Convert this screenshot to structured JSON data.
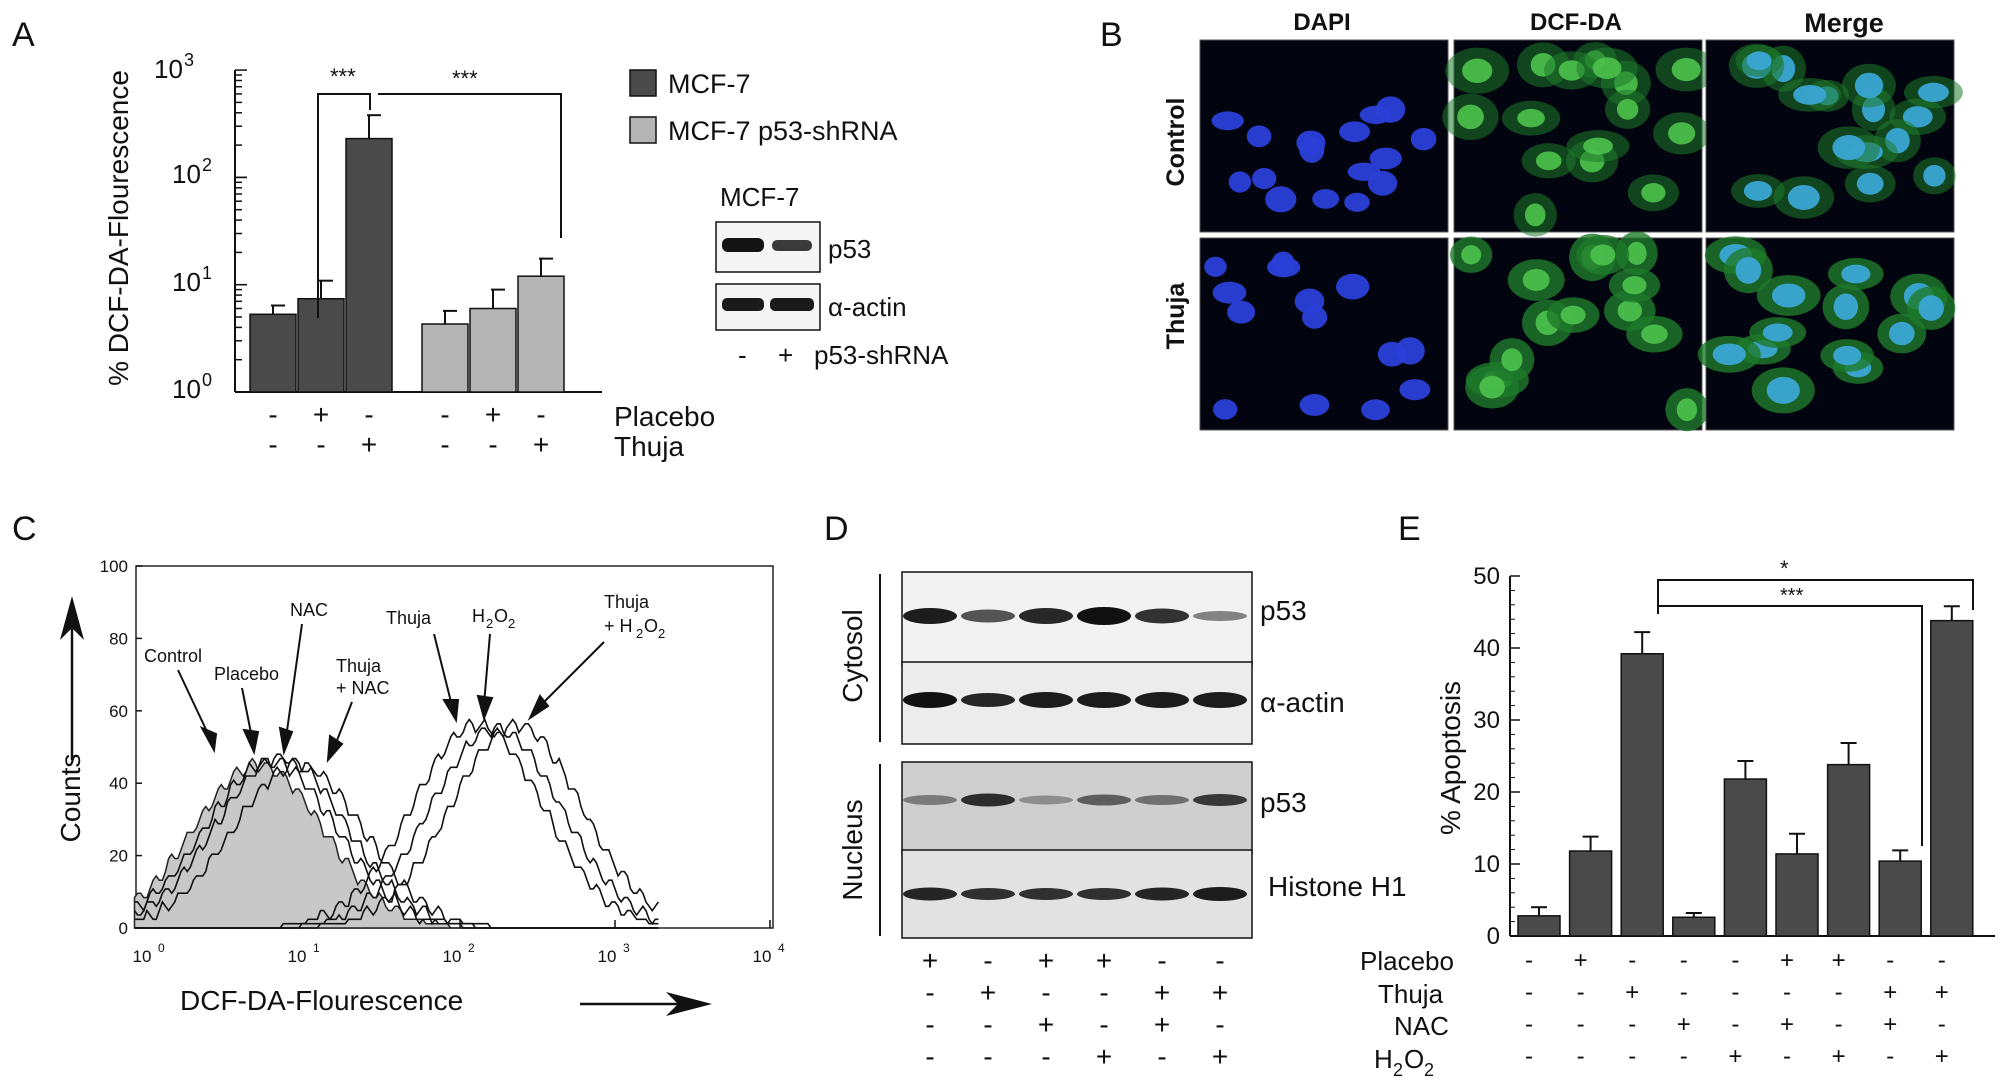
{
  "panels": {
    "A": {
      "letter": "A",
      "chart_data": {
        "type": "bar",
        "ylabel": "% DCF-DA-Flourescence",
        "yscale": "log",
        "ylim": [
          1,
          1000
        ],
        "yticks": [
          "10",
          "10",
          "10",
          "10"
        ],
        "ytick_exponents": [
          "0",
          "1",
          "2",
          "3"
        ],
        "series": [
          {
            "name": "MCF-7",
            "color": "#4a4a4a",
            "values": [
              5.3,
              7.4,
              230
            ],
            "errors": [
              1.1,
              3.5,
              150
            ]
          },
          {
            "name": "MCF-7 p53-shRNA",
            "color": "#b4b4b4",
            "values": [
              4.3,
              6.0,
              12.0
            ],
            "errors": [
              1.4,
              3.0,
              5.5
            ]
          }
        ],
        "conditions": {
          "rows": [
            {
              "label": "Placebo",
              "signs": [
                "-",
                "+",
                "-",
                "-",
                "+",
                "-"
              ]
            },
            {
              "label": "Thuja",
              "signs": [
                "-",
                "-",
                "+",
                "-",
                "-",
                "+"
              ]
            }
          ]
        },
        "annotations": [
          "***",
          "***"
        ]
      },
      "blot": {
        "title": "MCF-7",
        "bands": [
          "p53",
          "α-actin"
        ],
        "lane_signs": [
          "-",
          "+"
        ],
        "lane_label": "p53-shRNA"
      }
    },
    "B": {
      "letter": "B",
      "columns": [
        {
          "label": "DAPI",
          "color": "#2f58c8"
        },
        {
          "label": "DCF-DA",
          "color": "#3fb43f"
        },
        {
          "label": "Merge",
          "color": "#111111"
        }
      ],
      "rows": [
        "Control",
        "Thuja"
      ]
    },
    "C": {
      "letter": "C",
      "chart_data": {
        "type": "area",
        "xlabel": "DCF-DA-Flourescence",
        "ylabel": "Counts",
        "xscale": "log",
        "xlim": [
          1,
          10000
        ],
        "ylim": [
          0,
          100
        ],
        "xticks": [
          "10",
          "10",
          "10",
          "10",
          "10"
        ],
        "xtick_exponents": [
          "0",
          "1",
          "2",
          "3",
          "4"
        ],
        "yticks": [
          "0",
          "20",
          "40",
          "60",
          "80",
          "100"
        ],
        "peaks": [
          {
            "name": "Control",
            "center": 5,
            "height": 45,
            "filled": true
          },
          {
            "name": "Placebo",
            "center": 6,
            "height": 46
          },
          {
            "name": "NAC",
            "center": 7,
            "height": 47
          },
          {
            "name": "Thuja + NAC",
            "center": 9,
            "height": 45
          },
          {
            "name": "Thuja",
            "center": 130,
            "height": 56
          },
          {
            "name": "H2O2",
            "center": 170,
            "height": 55
          },
          {
            "name": "Thuja + H2O2",
            "center": 230,
            "height": 56
          }
        ],
        "labels": {
          "control": "Control",
          "placebo": "Placebo",
          "nac": "NAC",
          "thuja_nac_1": "Thuja",
          "thuja_nac_2": "+ NAC",
          "thuja": "Thuja",
          "h2o2_main": "H",
          "h2o2_sub": "2",
          "h2o2_o": "O",
          "h2o2_sub2": "2",
          "th2_1": "Thuja",
          "th2_2": "+ H",
          "th2_sub": "2",
          "th2_o": "O",
          "th2_sub2": "2"
        }
      }
    },
    "D": {
      "letter": "D",
      "fractions": [
        "Cytosol",
        "Nucleus"
      ],
      "bands": [
        "p53",
        "α-actin",
        "p53",
        "Histone H1"
      ],
      "conditions": [
        [
          "+",
          "-",
          "+",
          "+",
          "-",
          "-"
        ],
        [
          "-",
          "+",
          "-",
          "-",
          "+",
          "+"
        ],
        [
          "-",
          "-",
          "+",
          "-",
          "+",
          "-"
        ],
        [
          "-",
          "-",
          "-",
          "+",
          "-",
          "+"
        ]
      ]
    },
    "E": {
      "letter": "E",
      "chart_data": {
        "type": "bar",
        "ylabel": "% Apoptosis",
        "ylim": [
          0,
          50
        ],
        "yticks": [
          "0",
          "10",
          "20",
          "30",
          "40",
          "50"
        ],
        "values": [
          2.8,
          11.8,
          39.2,
          2.6,
          21.8,
          11.4,
          23.8,
          10.4,
          43.8
        ],
        "errors": [
          1.2,
          2.0,
          3.0,
          0.6,
          2.5,
          2.8,
          3.0,
          1.5,
          2.0
        ],
        "color": "#4a4a4a",
        "annotations": [
          "*",
          "***"
        ],
        "conditions": {
          "rows": [
            {
              "label": "Placebo",
              "signs": [
                "-",
                "+",
                "-",
                "-",
                "-",
                "+",
                "+",
                "-",
                "-"
              ]
            },
            {
              "label": "Thuja",
              "signs": [
                "-",
                "-",
                "+",
                "-",
                "-",
                "-",
                "-",
                "+",
                "+"
              ]
            },
            {
              "label": "NAC",
              "signs": [
                "-",
                "-",
                "-",
                "+",
                "-",
                "+",
                "-",
                "+",
                "-"
              ]
            },
            {
              "label": "H",
              "sub": "2",
              "label2": "O",
              "sub2": "2",
              "signs": [
                "-",
                "-",
                "-",
                "-",
                "+",
                "-",
                "+",
                "-",
                "+"
              ]
            }
          ]
        }
      }
    }
  }
}
